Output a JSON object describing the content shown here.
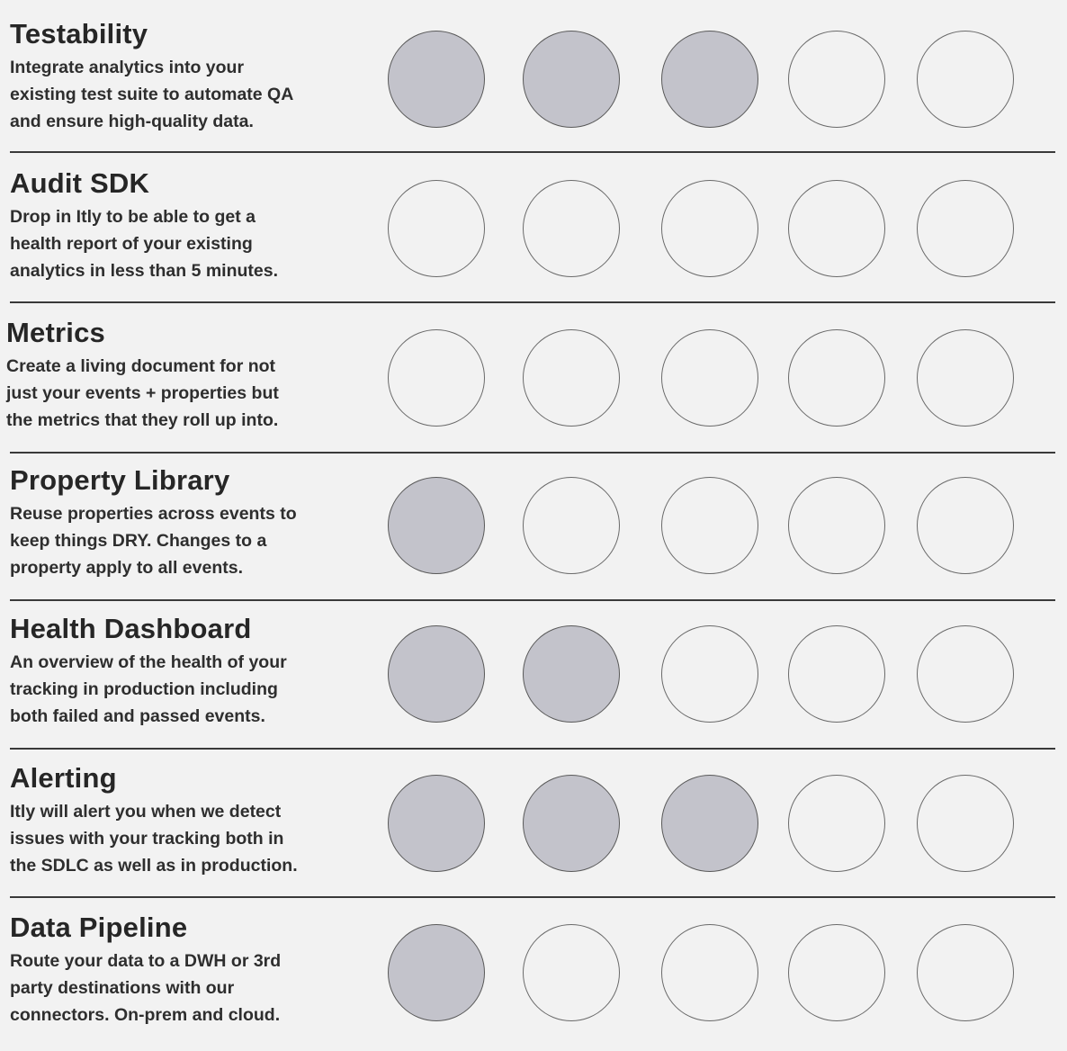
{
  "features": [
    {
      "title": "Testability",
      "desc_lines": [
        "Integrate analytics into your",
        "existing test suite to automate QA",
        "and ensure high-quality data."
      ],
      "score": 3,
      "max": 5
    },
    {
      "title": "Audit SDK",
      "desc_lines": [
        "Drop in Itly to be able to get a",
        "health report of your existing",
        "analytics in less than 5 minutes."
      ],
      "score": 0,
      "max": 5
    },
    {
      "title": "Metrics",
      "desc_lines": [
        "Create a living document for not",
        "just your events + properties but",
        "the metrics that they roll up into."
      ],
      "score": 0,
      "max": 5
    },
    {
      "title": "Property Library",
      "desc_lines": [
        "Reuse properties across events to",
        "keep things DRY. Changes to a",
        "property apply to all events."
      ],
      "score": 1,
      "max": 5
    },
    {
      "title": "Health Dashboard",
      "desc_lines": [
        "An overview of the health of your",
        "tracking in production including",
        "both failed and passed events."
      ],
      "score": 2,
      "max": 5
    },
    {
      "title": "Alerting",
      "desc_lines": [
        "Itly will alert you when we detect",
        "issues with your tracking both in",
        "the SDLC as well as in production."
      ],
      "score": 3,
      "max": 5
    },
    {
      "title": "Data Pipeline",
      "desc_lines": [
        "Route your data to a DWH or 3rd",
        "party destinations with our",
        "connectors. On-prem and cloud."
      ],
      "score": 1,
      "max": 5
    }
  ],
  "colors": {
    "filled": "#c3c3cb",
    "background": "#f2f2f2",
    "divider": "#3a3a3a"
  }
}
